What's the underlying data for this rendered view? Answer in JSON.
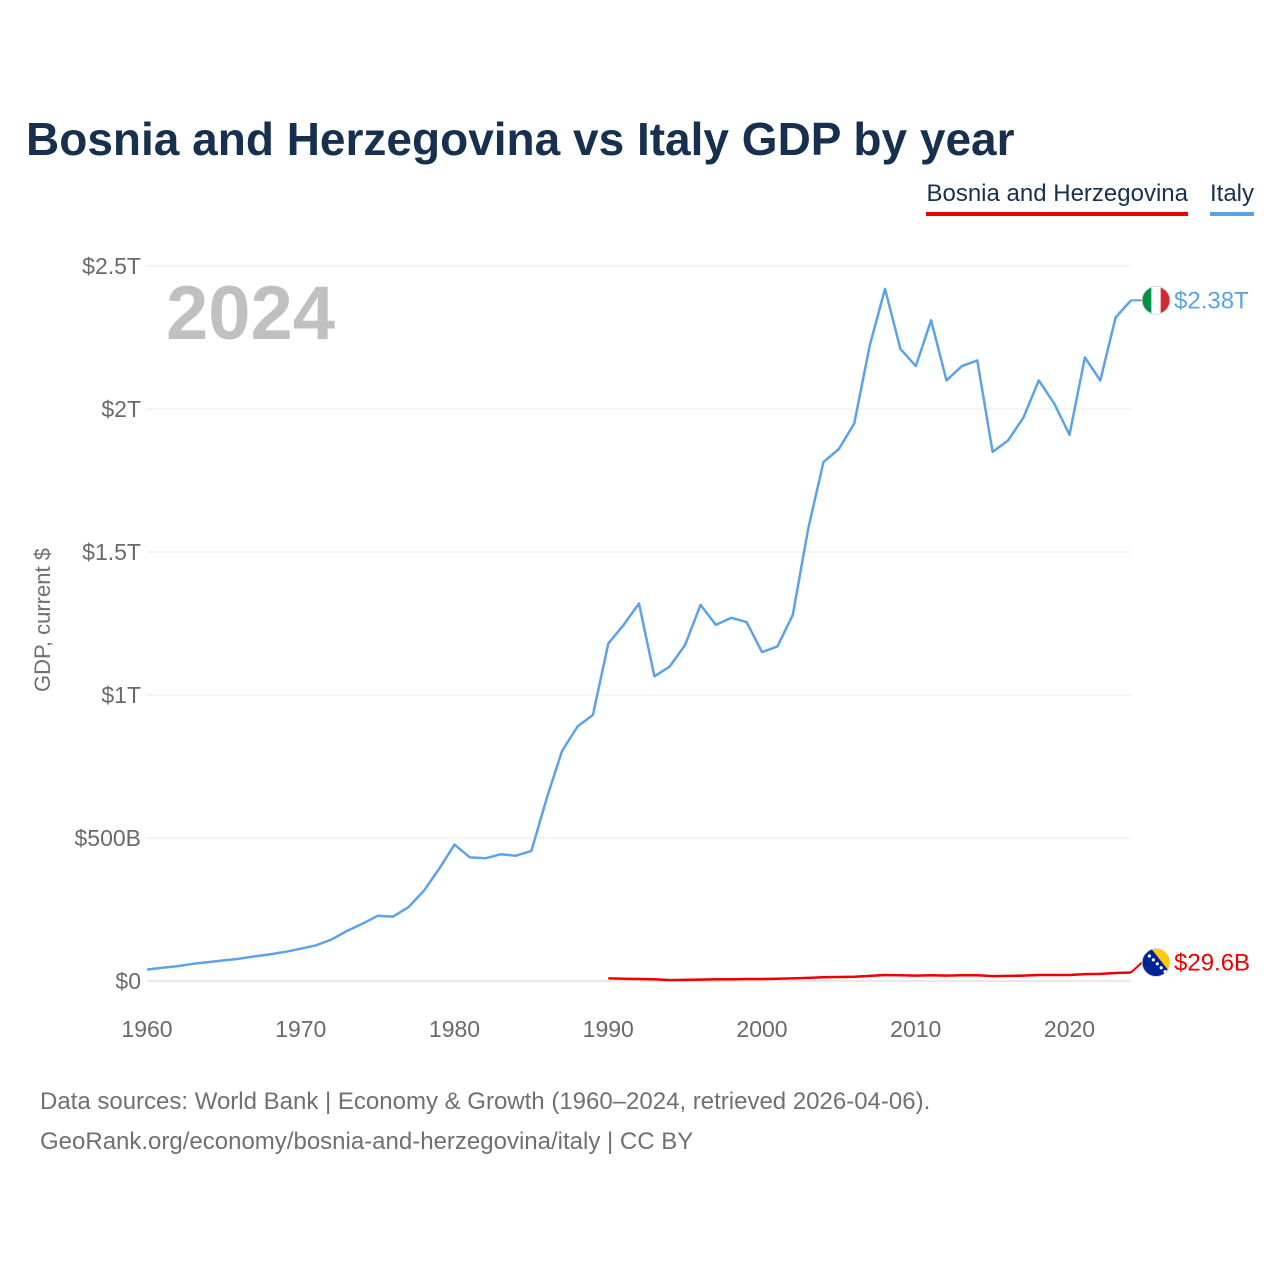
{
  "chart_data": {
    "type": "line",
    "title": "Bosnia and Herzegovina vs Italy GDP by year",
    "year_label": "2024",
    "xlabel": "",
    "ylabel": "GDP, current $",
    "xlim": [
      1960,
      2024
    ],
    "ylim": [
      0,
      2500
    ],
    "y_unit": "billion USD",
    "grid": true,
    "legend_position": "top-right",
    "x_ticks": [
      {
        "value": 1960,
        "label": "1960"
      },
      {
        "value": 1970,
        "label": "1970"
      },
      {
        "value": 1980,
        "label": "1980"
      },
      {
        "value": 1990,
        "label": "1990"
      },
      {
        "value": 2000,
        "label": "2000"
      },
      {
        "value": 2010,
        "label": "2010"
      },
      {
        "value": 2020,
        "label": "2020"
      }
    ],
    "y_ticks": [
      {
        "value": 0,
        "label": "$0"
      },
      {
        "value": 500,
        "label": "$500B"
      },
      {
        "value": 1000,
        "label": "$1T"
      },
      {
        "value": 1500,
        "label": "$1.5T"
      },
      {
        "value": 2000,
        "label": "$2T"
      },
      {
        "value": 2500,
        "label": "$2.5T"
      }
    ],
    "series": [
      {
        "name": "Bosnia and Herzegovina",
        "color": "#ee0000",
        "flag_colors": [
          "#002395",
          "#fecb00"
        ],
        "end_label": "$29.6B",
        "x": [
          1990,
          1991,
          1992,
          1993,
          1994,
          1995,
          1996,
          1997,
          1998,
          1999,
          2000,
          2001,
          2002,
          2003,
          2004,
          2005,
          2006,
          2007,
          2008,
          2009,
          2010,
          2011,
          2012,
          2013,
          2014,
          2015,
          2016,
          2017,
          2018,
          2019,
          2020,
          2021,
          2022,
          2023,
          2024
        ],
        "values": [
          9,
          8,
          7,
          6,
          3,
          4,
          5,
          6,
          6,
          7,
          7,
          8,
          9,
          11,
          13,
          14,
          15,
          18,
          21,
          20,
          19,
          20,
          19,
          20,
          20,
          17,
          18,
          19,
          21,
          21,
          21,
          24,
          25,
          28,
          29.6
        ]
      },
      {
        "name": "Italy",
        "color": "#5ba3e6",
        "flag_colors": [
          "#009246",
          "#ffffff",
          "#ce2b37"
        ],
        "end_label": "$2.38T",
        "x": [
          1960,
          1961,
          1962,
          1963,
          1964,
          1965,
          1966,
          1967,
          1968,
          1969,
          1970,
          1971,
          1972,
          1973,
          1974,
          1975,
          1976,
          1977,
          1978,
          1979,
          1980,
          1981,
          1982,
          1983,
          1984,
          1985,
          1986,
          1987,
          1988,
          1989,
          1990,
          1991,
          1992,
          1993,
          1994,
          1995,
          1996,
          1997,
          1998,
          1999,
          2000,
          2001,
          2002,
          2003,
          2004,
          2005,
          2006,
          2007,
          2008,
          2009,
          2010,
          2011,
          2012,
          2013,
          2014,
          2015,
          2016,
          2017,
          2018,
          2019,
          2020,
          2021,
          2022,
          2023,
          2024
        ],
        "values": [
          40,
          46,
          52,
          60,
          66,
          72,
          78,
          86,
          93,
          102,
          113,
          125,
          145,
          175,
          200,
          228,
          225,
          258,
          315,
          392,
          477,
          432,
          429,
          443,
          438,
          455,
          640,
          805,
          890,
          930,
          1180,
          1245,
          1320,
          1065,
          1100,
          1175,
          1315,
          1245,
          1270,
          1255,
          1150,
          1170,
          1280,
          1580,
          1815,
          1860,
          1950,
          2220,
          2420,
          2210,
          2150,
          2310,
          2100,
          2150,
          2170,
          1850,
          1890,
          1970,
          2100,
          2020,
          1910,
          2180,
          2100,
          2320,
          2380
        ]
      }
    ]
  },
  "footer": {
    "line1": "Data sources: World Bank | Economy & Growth (1960–2024, retrieved 2026-04-06).",
    "line2": "GeoRank.org/economy/bosnia-and-herzegovina/italy | CC BY"
  }
}
